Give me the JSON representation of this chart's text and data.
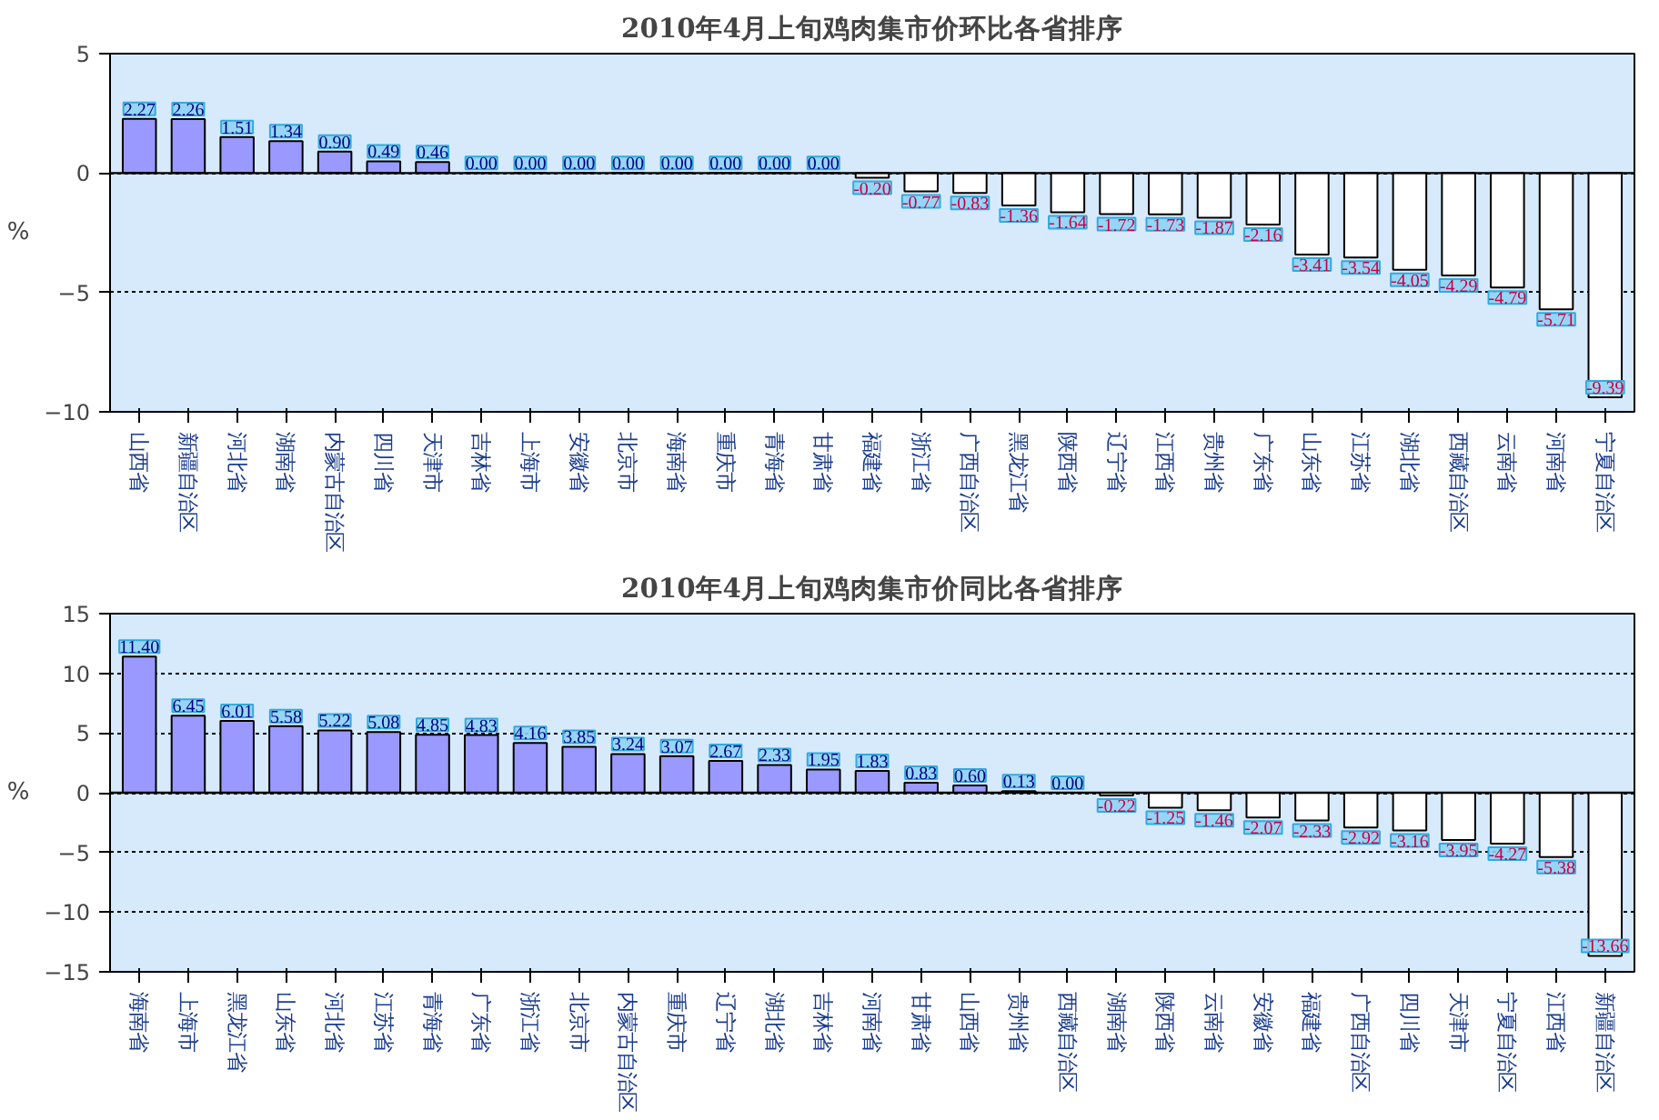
{
  "chart_data": [
    {
      "type": "bar",
      "title": "2010年4月上旬鸡肉集市价环比各省排序",
      "ylabel": "%",
      "categories": [
        "山西省",
        "新疆自治区",
        "河北省",
        "湖南省",
        "内蒙古自治区",
        "四川省",
        "天津市",
        "吉林省",
        "上海市",
        "安徽省",
        "北京市",
        "海南省",
        "重庆市",
        "青海省",
        "甘肃省",
        "福建省",
        "浙江省",
        "广西自治区",
        "黑龙江省",
        "陕西省",
        "辽宁省",
        "江西省",
        "贵州省",
        "广东省",
        "山东省",
        "江苏省",
        "湖北省",
        "西藏自治区",
        "云南省",
        "河南省",
        "宁夏自治区"
      ],
      "values": [
        2.27,
        2.26,
        1.51,
        1.34,
        0.9,
        0.49,
        0.46,
        0.0,
        0.0,
        0.0,
        0.0,
        0.0,
        0.0,
        0.0,
        0.0,
        -0.2,
        -0.77,
        -0.83,
        -1.36,
        -1.64,
        -1.72,
        -1.73,
        -1.87,
        -2.16,
        -3.41,
        -3.54,
        -4.05,
        -4.29,
        -4.79,
        -5.71,
        -9.39
      ],
      "value_labels": [
        "2.27",
        "2.26",
        "1.51",
        "1.34",
        "0.90",
        "0.49",
        "0.46",
        "0.00",
        "0.00",
        "0.00",
        "0.00",
        "0.00",
        "0.00",
        "0.00",
        "0.00",
        "-0.20",
        "-0.77",
        "-0.83",
        "-1.36",
        "-1.64",
        "-1.72",
        "-1.73",
        "-1.87",
        "-2.16",
        "-3.41",
        "-3.54",
        "-4.05",
        "-4.29",
        "-4.79",
        "-5.71",
        "-9.39"
      ],
      "colors": [
        "#9999ff",
        "#9999ff",
        "#9999ff",
        "#9999ff",
        "#9999ff",
        "#9999ff",
        "#9999ff",
        "#000000",
        "#000000",
        "#000000",
        "#000000",
        "#000000",
        "#000000",
        "#000000",
        "#000000",
        "#ffffff",
        "#ffffff",
        "#ffffff",
        "#ffffff",
        "#ffffff",
        "#ffffff",
        "#ffffff",
        "#ffffff",
        "#ffffff",
        "#ffffff",
        "#ffffff",
        "#ffffff",
        "#ffffff",
        "#ffffff",
        "#ffffff",
        "#ffffff"
      ],
      "ylim": [
        -10,
        5
      ],
      "yticks": [
        -10,
        -5,
        0,
        5
      ],
      "grid": "y"
    },
    {
      "type": "bar",
      "title": "2010年4月上旬鸡肉集市价同比各省排序",
      "ylabel": "%",
      "categories": [
        "海南省",
        "上海市",
        "黑龙江省",
        "山东省",
        "河北省",
        "江苏省",
        "青海省",
        "广东省",
        "浙江省",
        "北京市",
        "内蒙古自治区",
        "重庆市",
        "辽宁省",
        "湖北省",
        "吉林省",
        "河南省",
        "甘肃省",
        "山西省",
        "贵州省",
        "西藏自治区",
        "湖南省",
        "陕西省",
        "云南省",
        "安徽省",
        "福建省",
        "广西自治区",
        "四川省",
        "天津市",
        "宁夏自治区",
        "江西省",
        "新疆自治区"
      ],
      "values": [
        11.4,
        6.45,
        6.01,
        5.58,
        5.22,
        5.08,
        4.85,
        4.83,
        4.16,
        3.85,
        3.24,
        3.07,
        2.67,
        2.33,
        1.95,
        1.83,
        0.83,
        0.6,
        0.13,
        0.0,
        -0.22,
        -1.25,
        -1.46,
        -2.07,
        -2.33,
        -2.92,
        -3.16,
        -3.95,
        -4.27,
        -5.38,
        -13.66
      ],
      "value_labels": [
        "11.40",
        "6.45",
        "6.01",
        "5.58",
        "5.22",
        "5.08",
        "4.85",
        "4.83",
        "4.16",
        "3.85",
        "3.24",
        "3.07",
        "2.67",
        "2.33",
        "1.95",
        "1.83",
        "0.83",
        "0.60",
        "0.13",
        "0.00",
        "-0.22",
        "-1.25",
        "-1.46",
        "-2.07",
        "-2.33",
        "-2.92",
        "-3.16",
        "-3.95",
        "-4.27",
        "-5.38",
        "-13.66"
      ],
      "colors": [
        "#9999ff",
        "#9999ff",
        "#9999ff",
        "#9999ff",
        "#9999ff",
        "#9999ff",
        "#9999ff",
        "#9999ff",
        "#9999ff",
        "#9999ff",
        "#9999ff",
        "#9999ff",
        "#9999ff",
        "#9999ff",
        "#9999ff",
        "#9999ff",
        "#9999ff",
        "#9999ff",
        "#9999ff",
        "#000000",
        "#ffffff",
        "#ffffff",
        "#ffffff",
        "#ffffff",
        "#ffffff",
        "#ffffff",
        "#ffffff",
        "#ffffff",
        "#ffffff",
        "#ffffff",
        "#ffffff"
      ],
      "ylim": [
        -15,
        15
      ],
      "yticks": [
        -15,
        -10,
        -5,
        0,
        5,
        10,
        15
      ],
      "grid": "y"
    }
  ]
}
